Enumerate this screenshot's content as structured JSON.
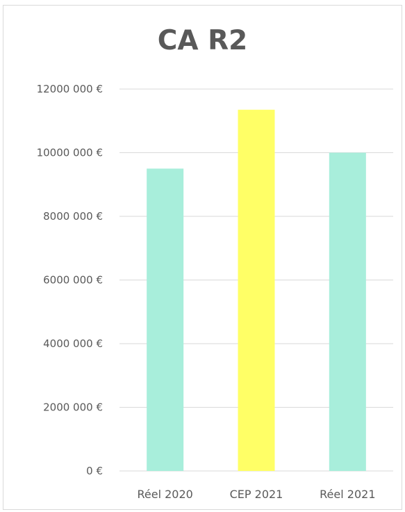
{
  "chart_data": {
    "type": "bar",
    "title": "CA R2",
    "xlabel": "",
    "ylabel": "",
    "categories": [
      "Réel 2020",
      "CEP 2021",
      "Réel 2021"
    ],
    "values": [
      9500000,
      11350000,
      10000000
    ],
    "colors": [
      "#a8eedb",
      "#ffff66",
      "#a8eedb"
    ],
    "ylim": [
      0,
      12000000
    ],
    "yticks": [
      0,
      2000000,
      4000000,
      6000000,
      8000000,
      10000000,
      12000000
    ],
    "ytick_labels": [
      "0 €",
      "2000 000 €",
      "4000 000 €",
      "6000 000 €",
      "8000 000 €",
      "10000 000 €",
      "12000 000 €"
    ],
    "grid": true,
    "legend": "none"
  }
}
